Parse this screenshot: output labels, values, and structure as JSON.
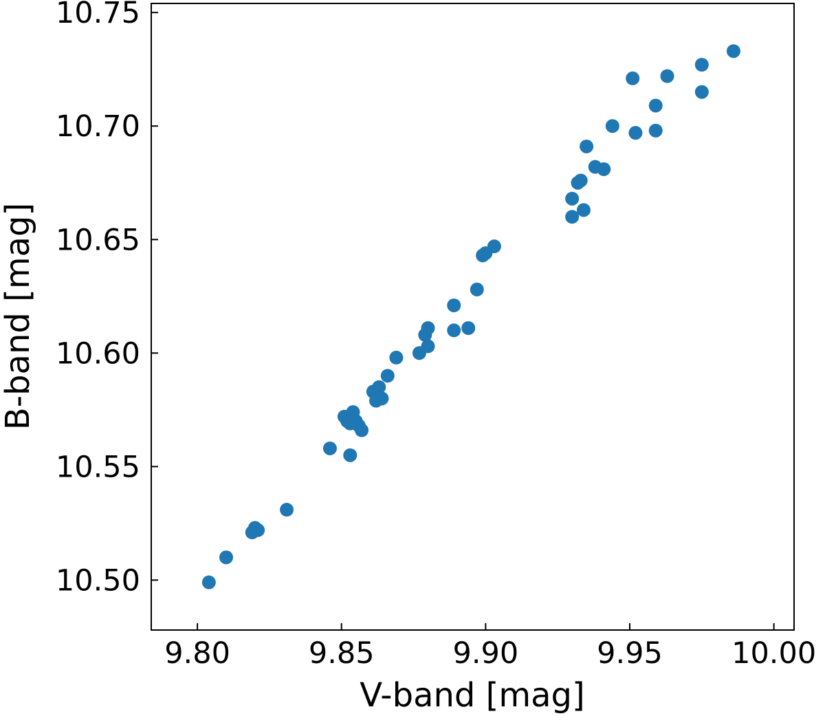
{
  "chart_data": {
    "type": "scatter",
    "xlabel": "V-band [mag]",
    "ylabel": "B-band [mag]",
    "xlim": [
      9.784,
      10.007
    ],
    "ylim": [
      10.478,
      10.754
    ],
    "xticks": [
      "9.80",
      "9.85",
      "9.90",
      "9.95",
      "10.00"
    ],
    "yticks": [
      "10.50",
      "10.55",
      "10.60",
      "10.65",
      "10.70",
      "10.75"
    ],
    "grid": false,
    "marker_color": "#1f77b4",
    "series": [
      {
        "points": [
          [
            9.804,
            10.499
          ],
          [
            9.81,
            10.51
          ],
          [
            9.819,
            10.521
          ],
          [
            9.82,
            10.523
          ],
          [
            9.821,
            10.522
          ],
          [
            9.831,
            10.531
          ],
          [
            9.846,
            10.558
          ],
          [
            9.853,
            10.555
          ],
          [
            9.851,
            10.572
          ],
          [
            9.852,
            10.57
          ],
          [
            9.853,
            10.569
          ],
          [
            9.854,
            10.574
          ],
          [
            9.855,
            10.57
          ],
          [
            9.856,
            10.568
          ],
          [
            9.857,
            10.566
          ],
          [
            9.861,
            10.583
          ],
          [
            9.862,
            10.579
          ],
          [
            9.863,
            10.585
          ],
          [
            9.864,
            10.58
          ],
          [
            9.866,
            10.59
          ],
          [
            9.869,
            10.598
          ],
          [
            9.877,
            10.6
          ],
          [
            9.879,
            10.608
          ],
          [
            9.88,
            10.603
          ],
          [
            9.88,
            10.611
          ],
          [
            9.889,
            10.621
          ],
          [
            9.889,
            10.61
          ],
          [
            9.894,
            10.611
          ],
          [
            9.897,
            10.628
          ],
          [
            9.899,
            10.643
          ],
          [
            9.9,
            10.644
          ],
          [
            9.903,
            10.647
          ],
          [
            9.93,
            10.66
          ],
          [
            9.93,
            10.668
          ],
          [
            9.932,
            10.675
          ],
          [
            9.933,
            10.676
          ],
          [
            9.934,
            10.663
          ],
          [
            9.935,
            10.691
          ],
          [
            9.938,
            10.682
          ],
          [
            9.941,
            10.681
          ],
          [
            9.944,
            10.7
          ],
          [
            9.951,
            10.721
          ],
          [
            9.952,
            10.697
          ],
          [
            9.959,
            10.698
          ],
          [
            9.959,
            10.709
          ],
          [
            9.963,
            10.722
          ],
          [
            9.975,
            10.727
          ],
          [
            9.975,
            10.715
          ],
          [
            9.986,
            10.733
          ]
        ]
      }
    ]
  }
}
